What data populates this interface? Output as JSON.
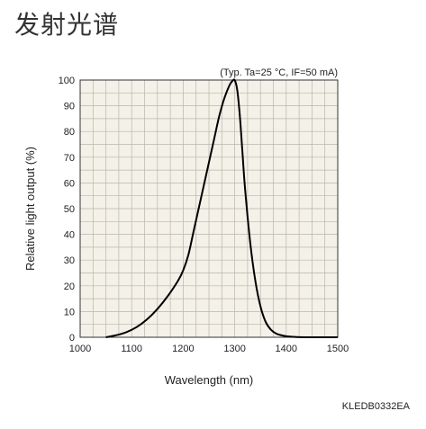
{
  "page": {
    "title": "发射光谱",
    "ref_code": "KLEDB0332EA"
  },
  "chart_data": {
    "type": "line",
    "title": "",
    "condition_note": "(Typ. Ta=25 °C, IF=50 mA)",
    "xlabel": "Wavelength (nm)",
    "ylabel": "Relative light output (%)",
    "xlim": [
      1000,
      1500
    ],
    "ylim": [
      0,
      100
    ],
    "x_ticks": [
      1000,
      1100,
      1200,
      1300,
      1400,
      1500
    ],
    "y_ticks": [
      0,
      10,
      20,
      30,
      40,
      50,
      60,
      70,
      80,
      90,
      100
    ],
    "grid": true,
    "series": [
      {
        "color": "#000000",
        "x": [
          1050,
          1070,
          1090,
          1110,
          1130,
          1150,
          1170,
          1190,
          1200,
          1210,
          1220,
          1230,
          1240,
          1250,
          1260,
          1270,
          1280,
          1290,
          1295,
          1300,
          1305,
          1310,
          1315,
          1320,
          1330,
          1340,
          1350,
          1360,
          1370,
          1380,
          1390,
          1400,
          1420,
          1450,
          1480,
          1500
        ],
        "y": [
          0,
          0.8,
          2,
          4,
          7,
          11,
          16,
          22,
          26,
          32,
          41,
          50,
          59,
          68,
          77,
          86,
          93,
          98,
          99.5,
          100,
          96,
          86,
          72,
          58,
          37,
          22,
          12,
          6,
          3,
          1.5,
          0.8,
          0.4,
          0.1,
          0,
          0,
          0
        ]
      }
    ]
  }
}
